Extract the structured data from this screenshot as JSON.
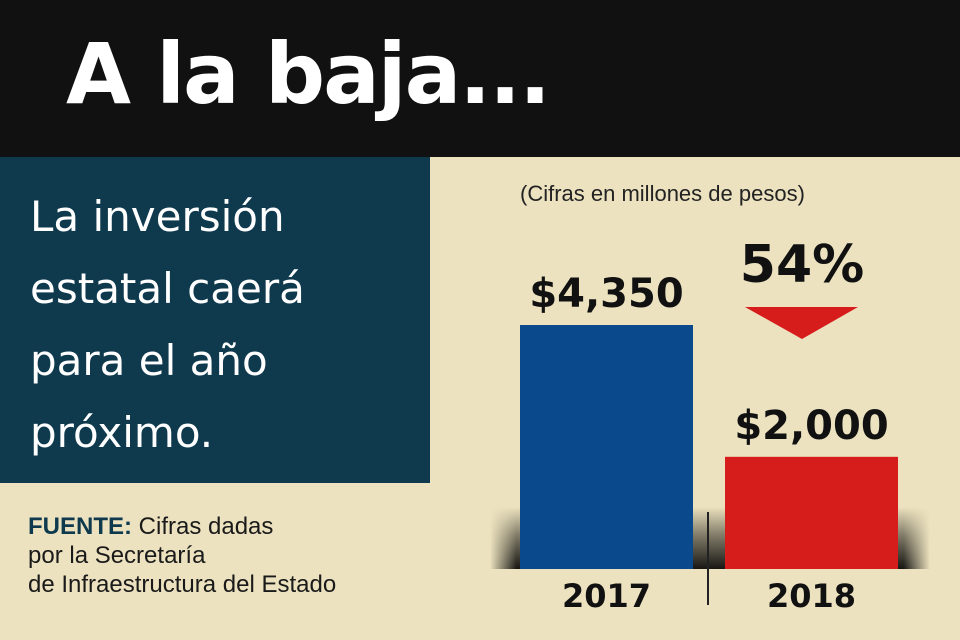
{
  "header": {
    "title": "A la baja..."
  },
  "panel": {
    "lines": [
      "La inversión",
      "estatal caerá",
      "para el año",
      "próximo."
    ]
  },
  "source": {
    "label": "FUENTE:",
    "line1": "Cifras dadas",
    "line2": "por la Secretaría",
    "line3": "de Infraestructura del Estado"
  },
  "colors": {
    "header_bg": "#111111",
    "panel_bg": "#0f3a4e",
    "page_bg": "#ece2bf",
    "bar_2017": "#0a4a8c",
    "bar_2018": "#d71c1c",
    "arrow": "#d71c1c"
  },
  "chart_data": {
    "type": "bar",
    "subtitle": "(Cifras en millones de pesos)",
    "categories": [
      "2017",
      "2018"
    ],
    "values": [
      4350,
      2000
    ],
    "value_labels": [
      "$4,350",
      "$2,000"
    ],
    "change_label": "54%",
    "change_direction": "down",
    "ylim": [
      0,
      4350
    ],
    "grid": false,
    "legend": "none"
  }
}
